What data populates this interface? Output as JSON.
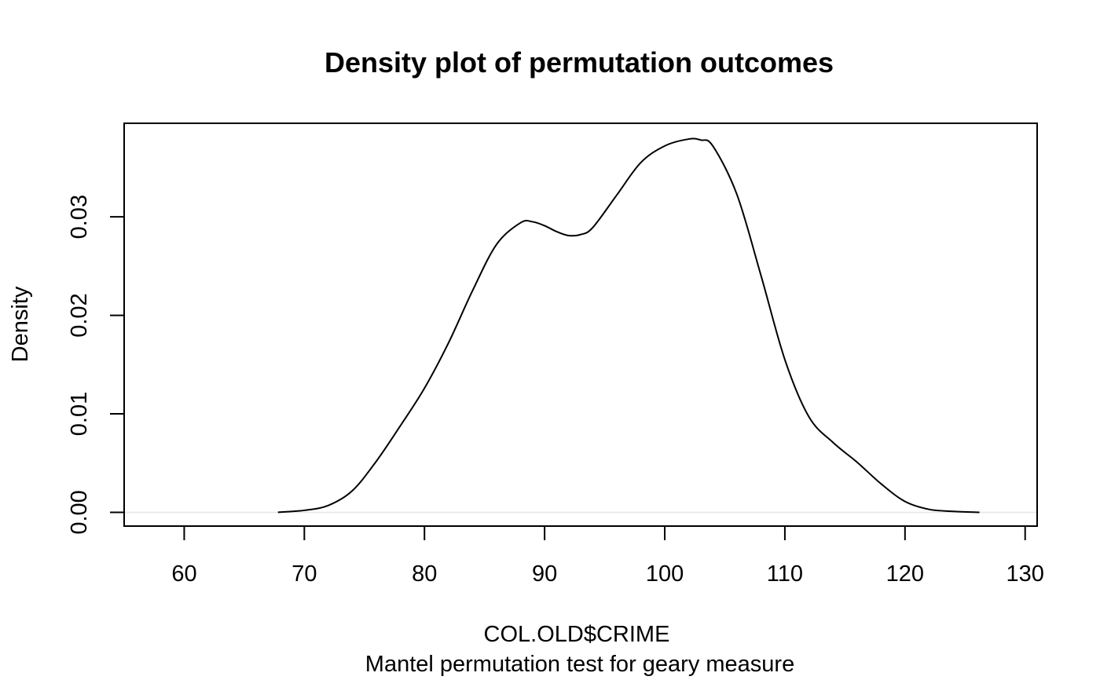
{
  "chart_data": {
    "type": "line",
    "title": "Density plot of permutation outcomes",
    "xlabel": "COL.OLD$CRIME",
    "subtitle": "Mantel permutation test for geary measure",
    "ylabel": "Density",
    "xlim": [
      55,
      131
    ],
    "ylim": [
      -0.0014,
      0.0395
    ],
    "x_ticks": [
      60,
      70,
      80,
      90,
      100,
      110,
      120,
      130
    ],
    "y_ticks": [
      0.0,
      0.01,
      0.02,
      0.03
    ],
    "x_tick_labels": [
      "60",
      "70",
      "80",
      "90",
      "100",
      "110",
      "120",
      "130"
    ],
    "y_tick_labels": [
      "0.00",
      "0.01",
      "0.02",
      "0.03"
    ],
    "zero_line": true,
    "grid": false,
    "legend": "none",
    "line_color": "#000000",
    "series": [
      {
        "x": [
          67.8,
          70,
          72,
          74,
          76,
          78,
          80,
          82,
          84,
          86,
          88,
          89,
          90,
          91,
          92,
          93,
          94,
          96,
          98,
          100,
          102,
          103,
          104,
          106,
          108,
          110,
          112,
          114,
          116,
          118,
          120,
          122,
          124,
          126.2
        ],
        "y": [
          0.0,
          0.0002,
          0.0007,
          0.0022,
          0.0052,
          0.0088,
          0.0126,
          0.0172,
          0.0225,
          0.0272,
          0.0294,
          0.0295,
          0.0291,
          0.0285,
          0.0281,
          0.0282,
          0.0289,
          0.0322,
          0.0355,
          0.0372,
          0.0379,
          0.0378,
          0.0372,
          0.0323,
          0.0241,
          0.0155,
          0.0097,
          0.0071,
          0.0051,
          0.0029,
          0.0011,
          0.0003,
          0.0001,
          0.0
        ]
      }
    ]
  }
}
